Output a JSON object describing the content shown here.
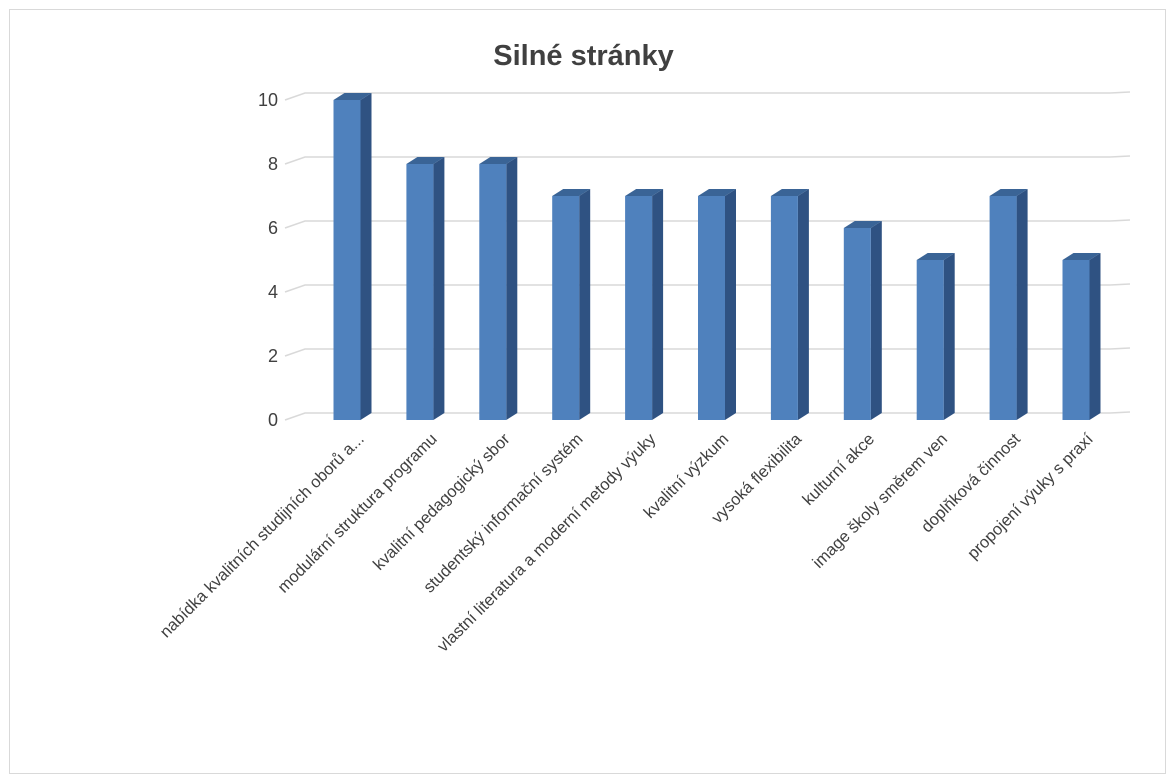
{
  "chart_data": {
    "type": "bar",
    "title": "Silné stránky",
    "categories": [
      "nabídka kvalitních studijních oborů a...",
      "modulární struktura programu",
      "kvalitní pedagogický sbor",
      "studentský informační systém",
      "vlastní literatura a moderní metody výuky",
      "kvalitní výzkum",
      "vysoká flexibilita",
      "kulturní akce",
      "image školy směrem ven",
      "doplňková činnost",
      "propojení výuky s praxí"
    ],
    "values": [
      10,
      8,
      8,
      7,
      7,
      7,
      7,
      6,
      5,
      7,
      5
    ],
    "ylim": [
      0,
      10
    ],
    "yticks": [
      0,
      2,
      4,
      6,
      8,
      10
    ],
    "xlabel": "",
    "ylabel": "",
    "grid": true,
    "legend": "none",
    "bar_style": "3d"
  },
  "colors": {
    "bar_front": "#4f81bd",
    "bar_side": "#2f5282",
    "bar_top": "#3a6496",
    "gridline": "#d9d9d9",
    "text": "#404040"
  }
}
